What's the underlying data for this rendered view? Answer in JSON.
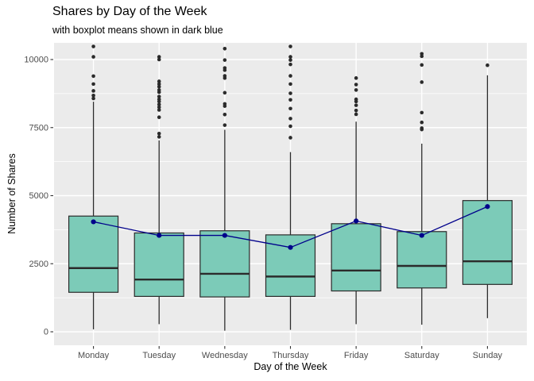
{
  "chart_data": {
    "type": "boxplot",
    "title": "Shares by Day of the Week",
    "subtitle": "with boxplot means shown in dark blue",
    "xlabel": "Day of the Week",
    "ylabel": "Number of Shares",
    "categories": [
      "Monday",
      "Tuesday",
      "Wednesday",
      "Thursday",
      "Friday",
      "Saturday",
      "Sunday"
    ],
    "y_ticks": [
      0,
      2500,
      5000,
      7500,
      10000
    ],
    "y_minor_gridlines": [
      1250,
      3750,
      6250,
      8750
    ],
    "ylim": [
      -200,
      10600
    ],
    "grid": "white major+minor horizontal lines and major vertical lines on gray panel (ggplot gray theme)",
    "legend": "none",
    "series": [
      {
        "day": "Monday",
        "min": 90,
        "q1": 1450,
        "median": 2340,
        "q3": 4250,
        "max": 8450,
        "mean": 4040,
        "outliers": [
          8570,
          8680,
          8850,
          9100,
          9390,
          10100,
          10480
        ]
      },
      {
        "day": "Tuesday",
        "min": 280,
        "q1": 1300,
        "median": 1920,
        "q3": 3630,
        "max": 7030,
        "mean": 3540,
        "outliers": [
          7160,
          7280,
          7880,
          8150,
          8250,
          8350,
          8460,
          8540,
          8640,
          8800,
          8880,
          9000,
          9100,
          9200,
          10000,
          10100
        ]
      },
      {
        "day": "Wednesday",
        "min": 40,
        "q1": 1280,
        "median": 2130,
        "q3": 3710,
        "max": 7420,
        "mean": 3540,
        "outliers": [
          7590,
          7980,
          8290,
          8370,
          8780,
          9320,
          9400,
          9610,
          9690,
          9980,
          10400
        ]
      },
      {
        "day": "Thursday",
        "min": 70,
        "q1": 1300,
        "median": 2030,
        "q3": 3560,
        "max": 6600,
        "mean": 3100,
        "outliers": [
          7130,
          7550,
          7830,
          8200,
          8520,
          8760,
          9100,
          9400,
          9820,
          9980,
          10100,
          10480
        ]
      },
      {
        "day": "Friday",
        "min": 280,
        "q1": 1500,
        "median": 2250,
        "q3": 3970,
        "max": 7720,
        "mean": 4070,
        "outliers": [
          7990,
          8130,
          8320,
          8460,
          8540,
          8880,
          9080,
          9320
        ]
      },
      {
        "day": "Saturday",
        "min": 260,
        "q1": 1610,
        "median": 2420,
        "q3": 3680,
        "max": 6910,
        "mean": 3540,
        "outliers": [
          7430,
          7480,
          7690,
          8050,
          9170,
          9800,
          10120,
          10210
        ]
      },
      {
        "day": "Sunday",
        "min": 500,
        "q1": 1740,
        "median": 2590,
        "q3": 4820,
        "max": 9420,
        "mean": 4600,
        "outliers": [
          9790
        ]
      }
    ],
    "colors": {
      "box_fill": "#7CCBB8",
      "box_stroke": "#2B2B2B",
      "outlier": "#2B2B2B",
      "mean_color": "#00008B",
      "panel_bg": "#EBEBEB",
      "gridline": "#FFFFFF",
      "axis_tick": "#333333",
      "tick_label": "#4D4D4D",
      "text": "#000000"
    }
  }
}
